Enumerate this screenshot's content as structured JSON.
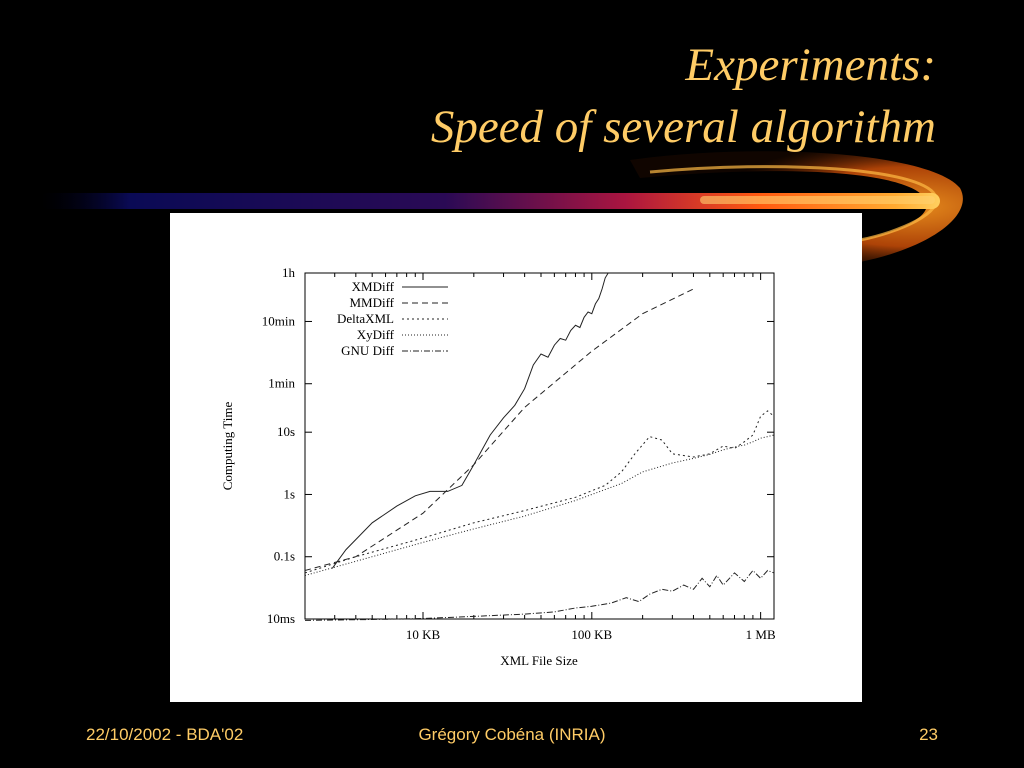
{
  "slide": {
    "title_line1": "Experiments:",
    "title_line2": "Speed of several algorithm",
    "footer_left": "22/10/2002 - BDA'02",
    "footer_center": "Grégory Cobéna (INRIA)",
    "footer_right": "23"
  },
  "colors": {
    "background": "#000000",
    "title": "#ffcc66",
    "footer": "#ffcc66",
    "figure_background": "#ffffff"
  },
  "chart_data": {
    "type": "line",
    "title": "",
    "xlabel": "XML File Size",
    "ylabel": "Computing Time",
    "x_scale": "log",
    "y_scale": "log",
    "x_unit": "KB",
    "y_unit": "seconds",
    "xlim": [
      2,
      1200
    ],
    "ylim": [
      0.01,
      3600
    ],
    "x_ticks": [
      {
        "value": 10,
        "label": "10 KB"
      },
      {
        "value": 100,
        "label": "100 KB"
      },
      {
        "value": 1000,
        "label": "1 MB"
      }
    ],
    "y_ticks": [
      {
        "value": 3600,
        "label": "1h"
      },
      {
        "value": 600,
        "label": "10min"
      },
      {
        "value": 60,
        "label": "1min"
      },
      {
        "value": 10,
        "label": "10s"
      },
      {
        "value": 1,
        "label": "1s"
      },
      {
        "value": 0.1,
        "label": "0.1s"
      },
      {
        "value": 0.01,
        "label": "10ms"
      }
    ],
    "grid": false,
    "legend_position": "top-left",
    "series": [
      {
        "name": "XMDiff",
        "dash": "solid",
        "points": [
          [
            2.9,
            0.065
          ],
          [
            3.5,
            0.13
          ],
          [
            5,
            0.35
          ],
          [
            7,
            0.65
          ],
          [
            9,
            0.95
          ],
          [
            11,
            1.12
          ],
          [
            14,
            1.12
          ],
          [
            17,
            1.4
          ],
          [
            20,
            3
          ],
          [
            25,
            9
          ],
          [
            30,
            17
          ],
          [
            35,
            27
          ],
          [
            40,
            50
          ],
          [
            45,
            120
          ],
          [
            50,
            180
          ],
          [
            55,
            160
          ],
          [
            60,
            250
          ],
          [
            65,
            320
          ],
          [
            70,
            300
          ],
          [
            75,
            430
          ],
          [
            80,
            520
          ],
          [
            85,
            480
          ],
          [
            90,
            700
          ],
          [
            95,
            850
          ],
          [
            100,
            800
          ],
          [
            105,
            1150
          ],
          [
            110,
            1400
          ],
          [
            115,
            2000
          ],
          [
            120,
            3000
          ],
          [
            125,
            3600
          ]
        ]
      },
      {
        "name": "MMDiff",
        "dash": "6,4",
        "points": [
          [
            2,
            0.06
          ],
          [
            4,
            0.1
          ],
          [
            10,
            0.5
          ],
          [
            20,
            3
          ],
          [
            40,
            25
          ],
          [
            100,
            200
          ],
          [
            200,
            800
          ],
          [
            400,
            2000
          ]
        ]
      },
      {
        "name": "DeltaXML",
        "dash": "2,3",
        "points": [
          [
            2,
            0.055
          ],
          [
            4,
            0.1
          ],
          [
            10,
            0.2
          ],
          [
            20,
            0.35
          ],
          [
            40,
            0.55
          ],
          [
            80,
            0.9
          ],
          [
            120,
            1.4
          ],
          [
            150,
            2.3
          ],
          [
            180,
            4.5
          ],
          [
            220,
            8.5
          ],
          [
            260,
            7.5
          ],
          [
            300,
            4.5
          ],
          [
            400,
            4
          ],
          [
            500,
            4.5
          ],
          [
            600,
            6
          ],
          [
            700,
            5.5
          ],
          [
            800,
            7
          ],
          [
            900,
            9
          ],
          [
            1000,
            18
          ],
          [
            1100,
            22
          ],
          [
            1200,
            18
          ]
        ]
      },
      {
        "name": "XyDiff",
        "dash": "1,2",
        "points": [
          [
            2,
            0.05
          ],
          [
            5,
            0.1
          ],
          [
            10,
            0.17
          ],
          [
            20,
            0.28
          ],
          [
            40,
            0.45
          ],
          [
            80,
            0.8
          ],
          [
            150,
            1.5
          ],
          [
            200,
            2.3
          ],
          [
            300,
            3.2
          ],
          [
            400,
            3.8
          ],
          [
            500,
            4.4
          ],
          [
            600,
            5.2
          ],
          [
            700,
            5.8
          ],
          [
            800,
            6.2
          ],
          [
            900,
            7
          ],
          [
            1000,
            8
          ],
          [
            1100,
            8.5
          ],
          [
            1200,
            9
          ]
        ]
      },
      {
        "name": "GNU Diff",
        "dash": "6,2,1,2",
        "points": [
          [
            2,
            0.0095
          ],
          [
            5,
            0.0098
          ],
          [
            10,
            0.0102
          ],
          [
            20,
            0.011
          ],
          [
            40,
            0.012
          ],
          [
            60,
            0.013
          ],
          [
            80,
            0.015
          ],
          [
            100,
            0.016
          ],
          [
            130,
            0.018
          ],
          [
            160,
            0.022
          ],
          [
            190,
            0.019
          ],
          [
            220,
            0.025
          ],
          [
            260,
            0.03
          ],
          [
            300,
            0.028
          ],
          [
            350,
            0.035
          ],
          [
            400,
            0.03
          ],
          [
            450,
            0.045
          ],
          [
            500,
            0.033
          ],
          [
            550,
            0.05
          ],
          [
            600,
            0.035
          ],
          [
            700,
            0.055
          ],
          [
            800,
            0.04
          ],
          [
            900,
            0.06
          ],
          [
            1000,
            0.045
          ],
          [
            1100,
            0.06
          ],
          [
            1200,
            0.055
          ]
        ]
      }
    ]
  }
}
